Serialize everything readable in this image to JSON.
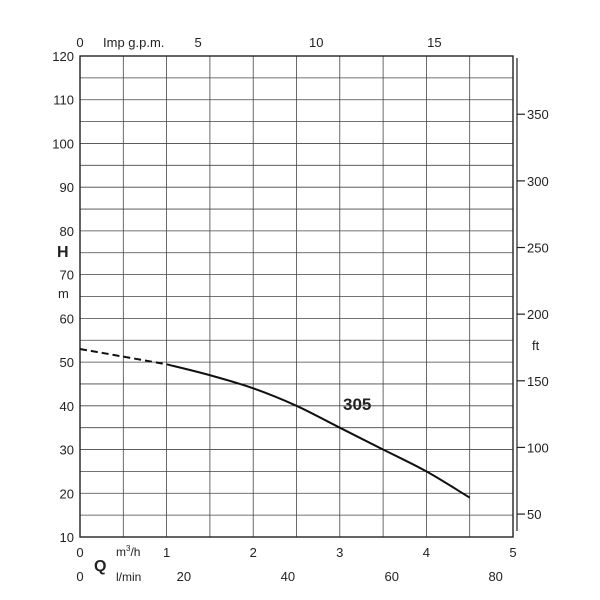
{
  "chart_data": {
    "type": "line",
    "title": "",
    "x_axis_bottom_primary": {
      "symbol": "Q",
      "unit_html": "m³/h",
      "unit_base": "m",
      "unit_sup": "3",
      "unit_rest": "/h",
      "range": [
        0,
        5
      ],
      "ticks": [
        0,
        1,
        2,
        3,
        4,
        5
      ]
    },
    "x_axis_bottom_secondary": {
      "unit": "l/min",
      "range": [
        0,
        83.333
      ],
      "ticks": [
        0,
        20,
        40,
        60,
        80
      ]
    },
    "x_axis_top": {
      "unit": "Imp g.p.m.",
      "range": [
        0,
        18.33
      ],
      "ticks": [
        0,
        5,
        10,
        15
      ]
    },
    "y_axis_left": {
      "symbol": "H",
      "unit": "m",
      "range": [
        10,
        120
      ],
      "ticks": [
        10,
        20,
        30,
        40,
        50,
        60,
        70,
        80,
        90,
        100,
        110,
        120
      ]
    },
    "y_axis_right": {
      "unit": "ft",
      "range": [
        32.8,
        393.7
      ],
      "ticks": [
        50,
        100,
        150,
        200,
        250,
        300,
        350
      ]
    },
    "grid": {
      "x_step": 0.5,
      "y_step": 5
    },
    "series": [
      {
        "name": "305",
        "dashed_points": [
          [
            0,
            53
          ],
          [
            1,
            49.5
          ]
        ],
        "solid_points": [
          [
            1,
            49.5
          ],
          [
            1.5,
            47
          ],
          [
            2,
            44
          ],
          [
            2.5,
            40
          ],
          [
            3,
            35
          ],
          [
            3.5,
            30
          ],
          [
            4,
            25
          ],
          [
            4.5,
            19
          ]
        ]
      }
    ]
  }
}
